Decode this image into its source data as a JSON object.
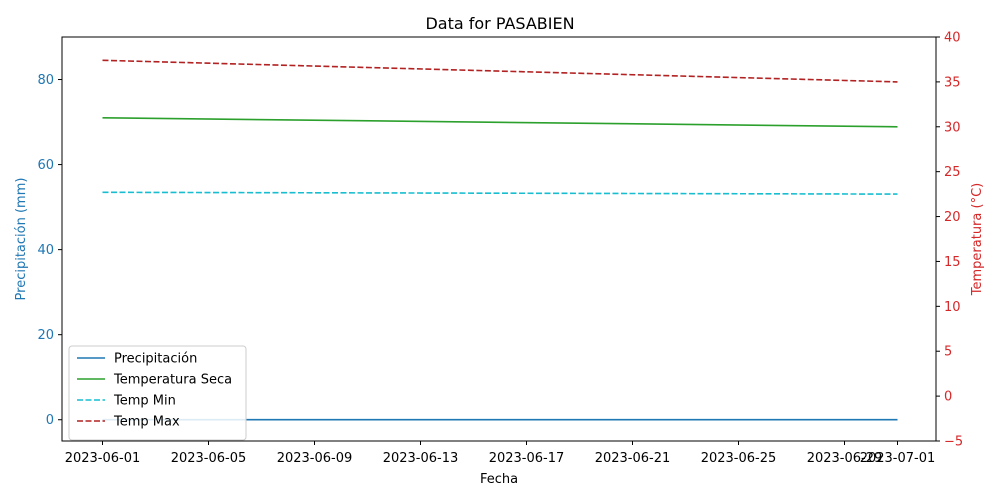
{
  "chart_data": {
    "type": "line",
    "title": "Data for PASABIEN",
    "xlabel": "Fecha",
    "ylabel_left": "Precipitación (mm)",
    "ylabel_right": "Temperatura (°C)",
    "ylim_left": [
      -5,
      90
    ],
    "ylim_right": [
      -5,
      40
    ],
    "yticks_left": [
      0,
      20,
      40,
      60,
      80
    ],
    "yticks_right": [
      -5,
      0,
      5,
      10,
      15,
      20,
      25,
      30,
      35,
      40
    ],
    "xticks": [
      "2023-06-01",
      "2023-06-05",
      "2023-06-09",
      "2023-06-13",
      "2023-06-17",
      "2023-06-21",
      "2023-06-25",
      "2023-06-29",
      "2023-07-01"
    ],
    "left_axis_color": "#1f77b4",
    "right_axis_color": "#d62728",
    "legend_position": "lower-left",
    "grid": false,
    "series": [
      {
        "name": "Precipitación",
        "axis": "left",
        "color": "#1f77b4",
        "dash": "solid",
        "x": [
          "2023-06-01",
          "2023-07-01"
        ],
        "values": [
          0,
          0
        ]
      },
      {
        "name": "Temperatura Seca",
        "axis": "right",
        "color": "#2ca02c",
        "dash": "solid",
        "x": [
          "2023-06-01",
          "2023-07-01"
        ],
        "values": [
          31.0,
          30.0
        ]
      },
      {
        "name": "Temp Min",
        "axis": "right",
        "color": "#17becf",
        "dash": "dashed",
        "x": [
          "2023-06-01",
          "2023-07-01"
        ],
        "values": [
          22.7,
          22.5
        ]
      },
      {
        "name": "Temp Max",
        "axis": "right",
        "color": "#b22222",
        "dash": "dashed",
        "x": [
          "2023-06-01",
          "2023-07-01"
        ],
        "values": [
          37.4,
          35.0
        ]
      }
    ]
  }
}
